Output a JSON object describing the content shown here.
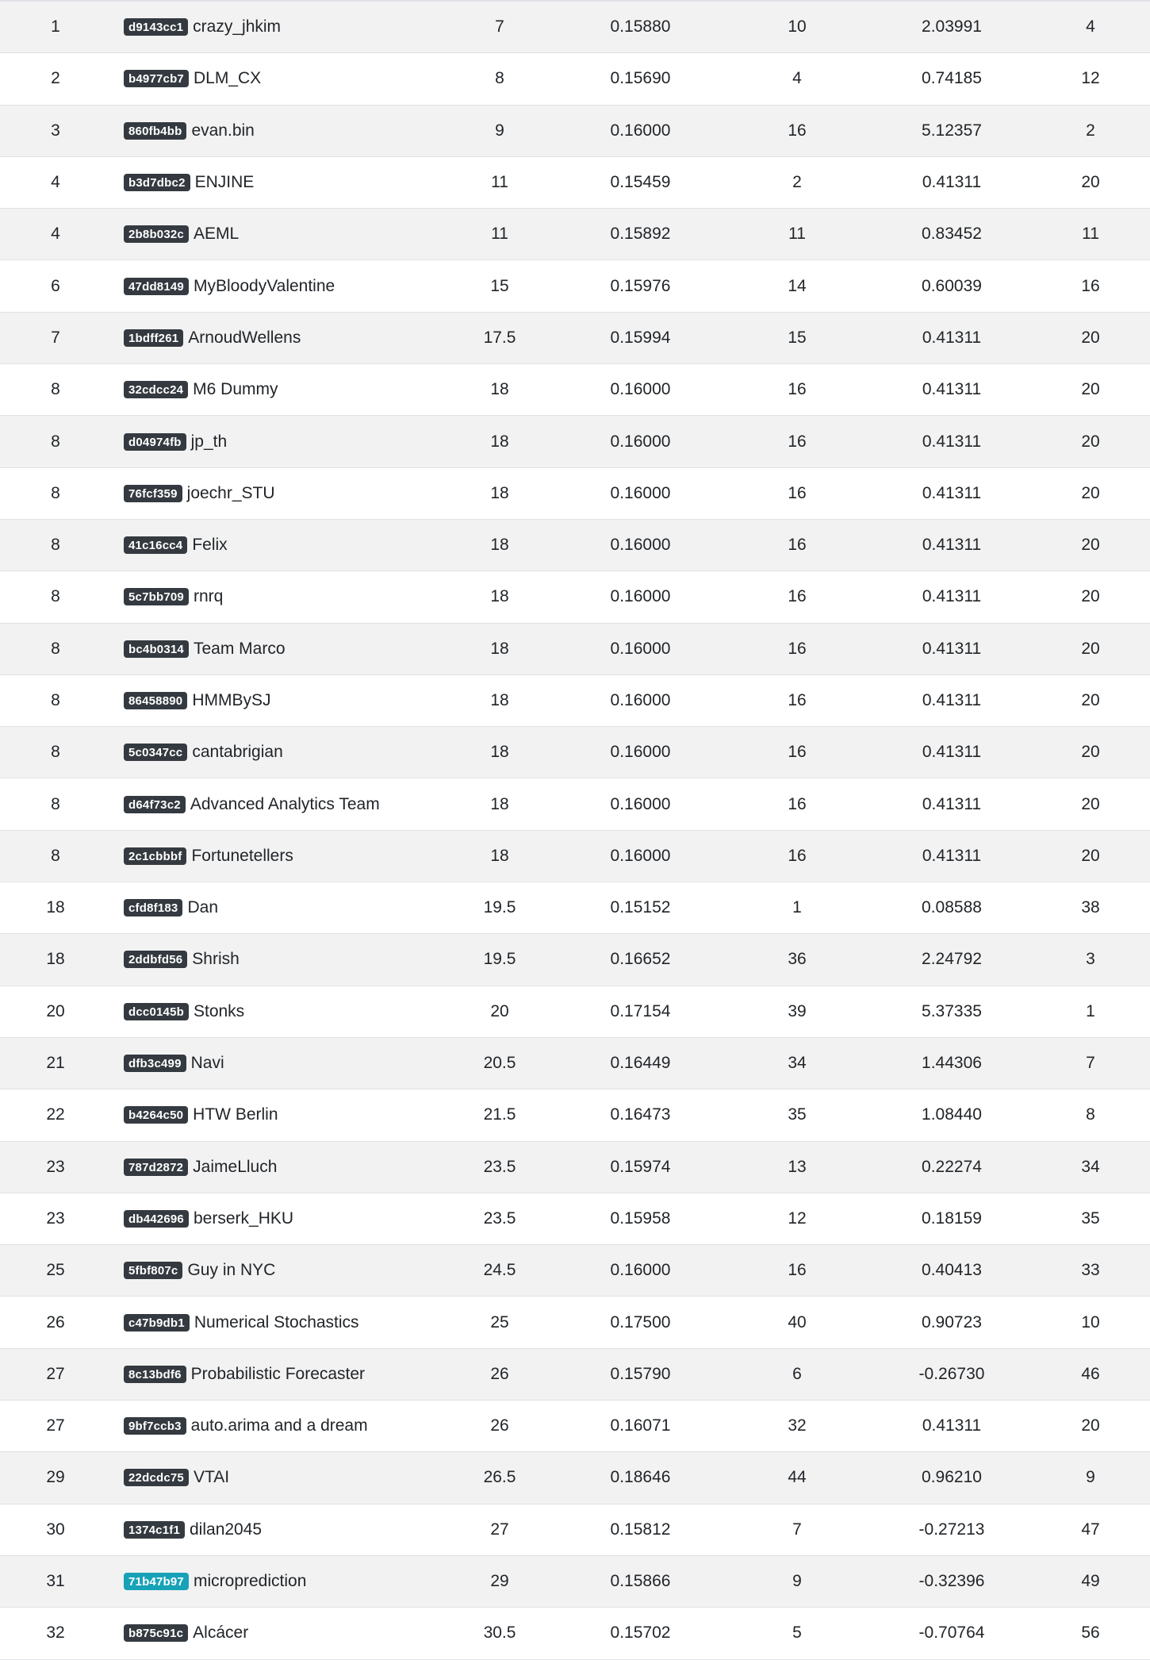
{
  "colors": {
    "badge_default": "#343a40",
    "badge_highlight": "#17a2b8",
    "stripe": "#f2f2f2",
    "border": "#dee2e6"
  },
  "rows": [
    {
      "rank": "1",
      "id": "d9143cc1",
      "name": "crazy_jhkim",
      "avg_rank": "7",
      "score": "0.15880",
      "score_rank": "10",
      "return": "2.03991",
      "return_rank": "4"
    },
    {
      "rank": "2",
      "id": "b4977cb7",
      "name": "DLM_CX",
      "avg_rank": "8",
      "score": "0.15690",
      "score_rank": "4",
      "return": "0.74185",
      "return_rank": "12"
    },
    {
      "rank": "3",
      "id": "860fb4bb",
      "name": "evan.bin",
      "avg_rank": "9",
      "score": "0.16000",
      "score_rank": "16",
      "return": "5.12357",
      "return_rank": "2"
    },
    {
      "rank": "4",
      "id": "b3d7dbc2",
      "name": "ENJINE",
      "avg_rank": "11",
      "score": "0.15459",
      "score_rank": "2",
      "return": "0.41311",
      "return_rank": "20"
    },
    {
      "rank": "4",
      "id": "2b8b032c",
      "name": "AEML",
      "avg_rank": "11",
      "score": "0.15892",
      "score_rank": "11",
      "return": "0.83452",
      "return_rank": "11"
    },
    {
      "rank": "6",
      "id": "47dd8149",
      "name": "MyBloodyValentine",
      "avg_rank": "15",
      "score": "0.15976",
      "score_rank": "14",
      "return": "0.60039",
      "return_rank": "16"
    },
    {
      "rank": "7",
      "id": "1bdff261",
      "name": "ArnoudWellens",
      "avg_rank": "17.5",
      "score": "0.15994",
      "score_rank": "15",
      "return": "0.41311",
      "return_rank": "20"
    },
    {
      "rank": "8",
      "id": "32cdcc24",
      "name": "M6 Dummy",
      "avg_rank": "18",
      "score": "0.16000",
      "score_rank": "16",
      "return": "0.41311",
      "return_rank": "20"
    },
    {
      "rank": "8",
      "id": "d04974fb",
      "name": "jp_th",
      "avg_rank": "18",
      "score": "0.16000",
      "score_rank": "16",
      "return": "0.41311",
      "return_rank": "20"
    },
    {
      "rank": "8",
      "id": "76fcf359",
      "name": "joechr_STU",
      "avg_rank": "18",
      "score": "0.16000",
      "score_rank": "16",
      "return": "0.41311",
      "return_rank": "20"
    },
    {
      "rank": "8",
      "id": "41c16cc4",
      "name": "Felix",
      "avg_rank": "18",
      "score": "0.16000",
      "score_rank": "16",
      "return": "0.41311",
      "return_rank": "20"
    },
    {
      "rank": "8",
      "id": "5c7bb709",
      "name": "rnrq",
      "avg_rank": "18",
      "score": "0.16000",
      "score_rank": "16",
      "return": "0.41311",
      "return_rank": "20"
    },
    {
      "rank": "8",
      "id": "bc4b0314",
      "name": "Team Marco",
      "avg_rank": "18",
      "score": "0.16000",
      "score_rank": "16",
      "return": "0.41311",
      "return_rank": "20"
    },
    {
      "rank": "8",
      "id": "86458890",
      "name": "HMMBySJ",
      "avg_rank": "18",
      "score": "0.16000",
      "score_rank": "16",
      "return": "0.41311",
      "return_rank": "20"
    },
    {
      "rank": "8",
      "id": "5c0347cc",
      "name": "cantabrigian",
      "avg_rank": "18",
      "score": "0.16000",
      "score_rank": "16",
      "return": "0.41311",
      "return_rank": "20"
    },
    {
      "rank": "8",
      "id": "d64f73c2",
      "name": "Advanced Analytics Team",
      "avg_rank": "18",
      "score": "0.16000",
      "score_rank": "16",
      "return": "0.41311",
      "return_rank": "20"
    },
    {
      "rank": "8",
      "id": "2c1cbbbf",
      "name": "Fortunetellers",
      "avg_rank": "18",
      "score": "0.16000",
      "score_rank": "16",
      "return": "0.41311",
      "return_rank": "20"
    },
    {
      "rank": "18",
      "id": "cfd8f183",
      "name": "Dan",
      "avg_rank": "19.5",
      "score": "0.15152",
      "score_rank": "1",
      "return": "0.08588",
      "return_rank": "38"
    },
    {
      "rank": "18",
      "id": "2ddbfd56",
      "name": "Shrish",
      "avg_rank": "19.5",
      "score": "0.16652",
      "score_rank": "36",
      "return": "2.24792",
      "return_rank": "3"
    },
    {
      "rank": "20",
      "id": "dcc0145b",
      "name": "Stonks",
      "avg_rank": "20",
      "score": "0.17154",
      "score_rank": "39",
      "return": "5.37335",
      "return_rank": "1"
    },
    {
      "rank": "21",
      "id": "dfb3c499",
      "name": "Navi",
      "avg_rank": "20.5",
      "score": "0.16449",
      "score_rank": "34",
      "return": "1.44306",
      "return_rank": "7"
    },
    {
      "rank": "22",
      "id": "b4264c50",
      "name": "HTW Berlin",
      "avg_rank": "21.5",
      "score": "0.16473",
      "score_rank": "35",
      "return": "1.08440",
      "return_rank": "8"
    },
    {
      "rank": "23",
      "id": "787d2872",
      "name": "JaimeLluch",
      "avg_rank": "23.5",
      "score": "0.15974",
      "score_rank": "13",
      "return": "0.22274",
      "return_rank": "34"
    },
    {
      "rank": "23",
      "id": "db442696",
      "name": "berserk_HKU",
      "avg_rank": "23.5",
      "score": "0.15958",
      "score_rank": "12",
      "return": "0.18159",
      "return_rank": "35"
    },
    {
      "rank": "25",
      "id": "5fbf807c",
      "name": "Guy in NYC",
      "avg_rank": "24.5",
      "score": "0.16000",
      "score_rank": "16",
      "return": "0.40413",
      "return_rank": "33"
    },
    {
      "rank": "26",
      "id": "c47b9db1",
      "name": "Numerical Stochastics",
      "avg_rank": "25",
      "score": "0.17500",
      "score_rank": "40",
      "return": "0.90723",
      "return_rank": "10"
    },
    {
      "rank": "27",
      "id": "8c13bdf6",
      "name": "Probabilistic Forecaster",
      "avg_rank": "26",
      "score": "0.15790",
      "score_rank": "6",
      "return": "-0.26730",
      "return_rank": "46"
    },
    {
      "rank": "27",
      "id": "9bf7ccb3",
      "name": "auto.arima and a dream",
      "avg_rank": "26",
      "score": "0.16071",
      "score_rank": "32",
      "return": "0.41311",
      "return_rank": "20"
    },
    {
      "rank": "29",
      "id": "22dcdc75",
      "name": "VTAI",
      "avg_rank": "26.5",
      "score": "0.18646",
      "score_rank": "44",
      "return": "0.96210",
      "return_rank": "9"
    },
    {
      "rank": "30",
      "id": "1374c1f1",
      "name": "dilan2045",
      "avg_rank": "27",
      "score": "0.15812",
      "score_rank": "7",
      "return": "-0.27213",
      "return_rank": "47"
    },
    {
      "rank": "31",
      "id": "71b47b97",
      "name": "microprediction",
      "avg_rank": "29",
      "score": "0.15866",
      "score_rank": "9",
      "return": "-0.32396",
      "return_rank": "49",
      "highlight": true
    },
    {
      "rank": "32",
      "id": "b875c91c",
      "name": "Alcácer",
      "avg_rank": "30.5",
      "score": "0.15702",
      "score_rank": "5",
      "return": "-0.70764",
      "return_rank": "56"
    }
  ]
}
